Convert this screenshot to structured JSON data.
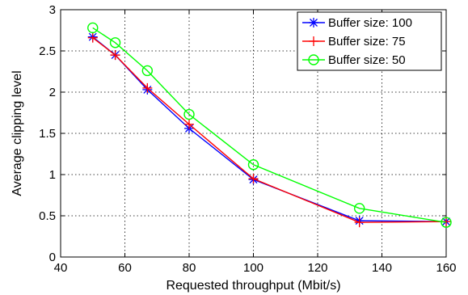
{
  "chart_data": {
    "type": "line",
    "title": "",
    "xlabel": "Requested throughput (Mbit/s)",
    "ylabel": "Average clipping level",
    "xlim": [
      40,
      160
    ],
    "ylim": [
      0,
      3
    ],
    "xticks": [
      40,
      60,
      80,
      100,
      120,
      140,
      160
    ],
    "yticks": [
      0,
      0.5,
      1,
      1.5,
      2,
      2.5,
      3
    ],
    "xtick_labels": [
      "40",
      "60",
      "80",
      "100",
      "120",
      "140",
      "160"
    ],
    "ytick_labels": [
      "0",
      "0.5",
      "1",
      "1.5",
      "2",
      "2.5",
      "3"
    ],
    "grid": true,
    "legend_position": "top-right",
    "series": [
      {
        "name": "Buffer size: 100",
        "color": "#0000ff",
        "marker": "asterisk",
        "x": [
          50,
          57,
          67,
          80,
          100,
          133,
          160
        ],
        "y": [
          2.67,
          2.45,
          2.03,
          1.56,
          0.94,
          0.44,
          0.43
        ]
      },
      {
        "name": "Buffer size: 75",
        "color": "#ff0000",
        "marker": "plus",
        "x": [
          50,
          57,
          67,
          80,
          100,
          133,
          160
        ],
        "y": [
          2.66,
          2.45,
          2.05,
          1.61,
          0.95,
          0.42,
          0.43
        ]
      },
      {
        "name": "Buffer size: 50",
        "color": "#00ff00",
        "marker": "circle",
        "x": [
          50,
          57,
          67,
          80,
          100,
          133,
          160
        ],
        "y": [
          2.78,
          2.6,
          2.26,
          1.73,
          1.12,
          0.59,
          0.42
        ]
      }
    ]
  }
}
